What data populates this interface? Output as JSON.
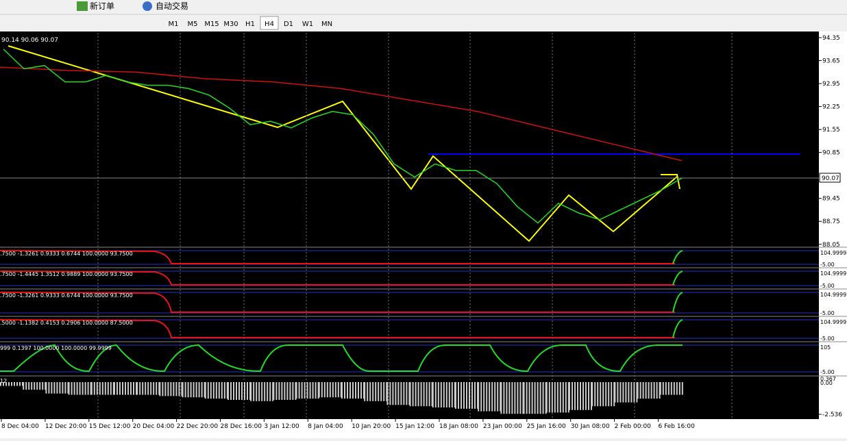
{
  "toolbar": {
    "new_order": "新订单",
    "auto_trading": "自动交易",
    "timeframes": [
      "M1",
      "M5",
      "M15",
      "M30",
      "H1",
      "H4",
      "D1",
      "W1",
      "MN"
    ]
  },
  "chart": {
    "ohlc_label": "90.14 90.06 90.07",
    "price_ticks": [
      94.35,
      93.65,
      92.95,
      92.25,
      91.55,
      90.85,
      89.45,
      88.75,
      88.05
    ],
    "current_price": 90.07,
    "close": [
      94.0,
      93.4,
      93.5,
      93.0,
      93.0,
      93.2,
      93.0,
      92.9,
      92.9,
      92.8,
      92.6,
      92.2,
      91.7,
      91.8,
      91.6,
      91.9,
      92.1,
      92.0,
      91.4,
      90.5,
      90.1,
      90.5,
      90.3,
      90.3,
      89.9,
      89.2,
      88.7,
      89.3,
      89.0,
      88.8,
      89.1,
      89.4,
      89.7,
      90.07
    ],
    "ma": [
      93.45,
      93.35,
      93.3,
      93.1,
      93.0,
      92.8,
      92.45,
      92.1,
      91.6,
      91.1,
      90.6
    ],
    "time_labels": [
      "8 Dec 04:00",
      "12 Dec 20:00",
      "15 Dec 12:00",
      "20 Dec 04:00",
      "22 Dec 20:00",
      "28 Dec 16:00",
      "3 Jan 12:00",
      "8 Jan 04:00",
      "10 Jan 20:00",
      "15 Jan 12:00",
      "18 Jan 08:00",
      "23 Jan 00:00",
      "25 Jan 16:00",
      "30 Jan 08:00",
      "2 Feb 00:00",
      "6 Feb 16:00"
    ]
  },
  "indicators": [
    {
      "label": ".7500 -1.3261 0.9333 0.6744 100.0000 93.7500",
      "axis": [
        "104.9999",
        "-5.00"
      ]
    },
    {
      "label": ".7500 -1.4445 1.3512 0.9889 100.0000 93.7500",
      "axis": [
        "104.9999",
        "-5.00"
      ]
    },
    {
      "label": ".7500 -1.3261 0.9333 0.6744 100.0000 93.7500",
      "axis": [
        "104.9999",
        "-5.00"
      ]
    },
    {
      "label": ".5000 -1.1382 0.4153 0.2906 100.0000 87.5000",
      "axis": [
        "104.9999",
        "-5.00"
      ]
    },
    {
      "label": "999 0.1397 100.0000 100.0000 99.9999",
      "axis": [
        "105",
        "-5.00"
      ]
    }
  ],
  "macd": {
    "label": "12",
    "axis_top": 0.367,
    "axis_zero": "0.00",
    "axis_bottom": -2.536,
    "histogram": [
      -0.3,
      -0.6,
      -0.9,
      -1.0,
      -1.0,
      -1.0,
      -1.0,
      -1.1,
      -1.2,
      -1.3,
      -1.4,
      -1.5,
      -1.4,
      -1.3,
      -1.2,
      -1.3,
      -1.5,
      -1.8,
      -1.9,
      -2.0,
      -2.1,
      -2.3,
      -2.5,
      -2.5,
      -2.4,
      -2.2,
      -1.9,
      -1.6,
      -1.3,
      -1.0
    ]
  }
}
